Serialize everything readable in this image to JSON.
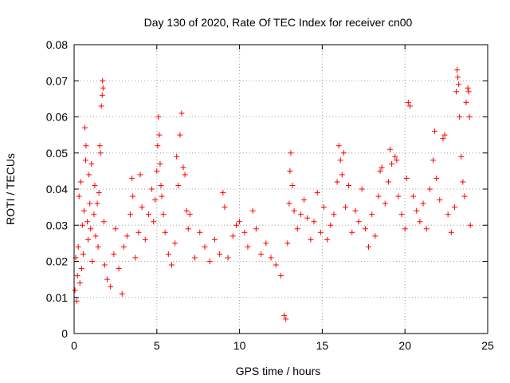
{
  "chart_data": {
    "type": "scatter",
    "title": "Day 130 of 2020, Rate Of TEC Index for receiver cn00",
    "xlabel": "GPS time / hours",
    "ylabel": "ROTI / TECUs",
    "xlim": [
      0,
      25
    ],
    "ylim": [
      0,
      0.08
    ],
    "xticks": [
      0,
      5,
      10,
      15,
      20,
      25
    ],
    "xtick_labels": [
      "0",
      "5",
      "10",
      "15",
      "20",
      "25"
    ],
    "yticks": [
      0,
      0.01,
      0.02,
      0.03,
      0.04,
      0.05,
      0.06,
      0.07,
      0.08
    ],
    "ytick_labels": [
      "0",
      "0.01",
      "0.02",
      "0.03",
      "0.04",
      "0.05",
      "0.06",
      "0.07",
      "0.08"
    ],
    "grid": true,
    "marker": "+",
    "color": "#ff0000",
    "series": [
      {
        "name": "ROTI",
        "points": [
          [
            0.05,
            0.012
          ],
          [
            0.1,
            0.021
          ],
          [
            0.15,
            0.009
          ],
          [
            0.2,
            0.016
          ],
          [
            0.25,
            0.024
          ],
          [
            0.3,
            0.038
          ],
          [
            0.35,
            0.014
          ],
          [
            0.4,
            0.042
          ],
          [
            0.45,
            0.018
          ],
          [
            0.5,
            0.03
          ],
          [
            0.55,
            0.022
          ],
          [
            0.6,
            0.034
          ],
          [
            0.65,
            0.057
          ],
          [
            0.7,
            0.048
          ],
          [
            0.72,
            0.052
          ],
          [
            0.8,
            0.031
          ],
          [
            0.85,
            0.026
          ],
          [
            0.9,
            0.044
          ],
          [
            0.95,
            0.036
          ],
          [
            1.0,
            0.029
          ],
          [
            1.05,
            0.047
          ],
          [
            1.1,
            0.02
          ],
          [
            1.2,
            0.033
          ],
          [
            1.25,
            0.041
          ],
          [
            1.3,
            0.027
          ],
          [
            1.4,
            0.036
          ],
          [
            1.45,
            0.024
          ],
          [
            1.5,
            0.039
          ],
          [
            1.55,
            0.052
          ],
          [
            1.6,
            0.05
          ],
          [
            1.65,
            0.063
          ],
          [
            1.7,
            0.066
          ],
          [
            1.72,
            0.07
          ],
          [
            1.75,
            0.068
          ],
          [
            1.8,
            0.031
          ],
          [
            1.85,
            0.019
          ],
          [
            2.0,
            0.015
          ],
          [
            2.2,
            0.013
          ],
          [
            2.4,
            0.022
          ],
          [
            2.5,
            0.029
          ],
          [
            2.7,
            0.018
          ],
          [
            2.9,
            0.011
          ],
          [
            3.0,
            0.024
          ],
          [
            3.2,
            0.027
          ],
          [
            3.4,
            0.033
          ],
          [
            3.5,
            0.043
          ],
          [
            3.55,
            0.038
          ],
          [
            3.7,
            0.021
          ],
          [
            3.9,
            0.028
          ],
          [
            4.0,
            0.044
          ],
          [
            4.1,
            0.035
          ],
          [
            4.3,
            0.026
          ],
          [
            4.5,
            0.033
          ],
          [
            4.7,
            0.04
          ],
          [
            4.8,
            0.031
          ],
          [
            4.9,
            0.037
          ],
          [
            5.0,
            0.045
          ],
          [
            5.05,
            0.052
          ],
          [
            5.1,
            0.06
          ],
          [
            5.15,
            0.055
          ],
          [
            5.2,
            0.047
          ],
          [
            5.25,
            0.041
          ],
          [
            5.3,
            0.038
          ],
          [
            5.4,
            0.033
          ],
          [
            5.5,
            0.028
          ],
          [
            5.7,
            0.022
          ],
          [
            5.9,
            0.019
          ],
          [
            6.1,
            0.025
          ],
          [
            6.2,
            0.049
          ],
          [
            6.3,
            0.041
          ],
          [
            6.4,
            0.055
          ],
          [
            6.5,
            0.061
          ],
          [
            6.6,
            0.046
          ],
          [
            6.7,
            0.044
          ],
          [
            6.8,
            0.034
          ],
          [
            6.9,
            0.029
          ],
          [
            7.0,
            0.033
          ],
          [
            7.3,
            0.021
          ],
          [
            7.6,
            0.028
          ],
          [
            7.9,
            0.024
          ],
          [
            8.2,
            0.02
          ],
          [
            8.5,
            0.026
          ],
          [
            8.8,
            0.022
          ],
          [
            9.0,
            0.039
          ],
          [
            9.1,
            0.035
          ],
          [
            9.3,
            0.021
          ],
          [
            9.6,
            0.027
          ],
          [
            9.8,
            0.03
          ],
          [
            10.0,
            0.031
          ],
          [
            10.3,
            0.028
          ],
          [
            10.5,
            0.024
          ],
          [
            10.8,
            0.034
          ],
          [
            11.0,
            0.029
          ],
          [
            11.3,
            0.022
          ],
          [
            11.6,
            0.025
          ],
          [
            11.9,
            0.021
          ],
          [
            12.2,
            0.019
          ],
          [
            12.5,
            0.016
          ],
          [
            12.7,
            0.005
          ],
          [
            12.8,
            0.004
          ],
          [
            12.9,
            0.025
          ],
          [
            13.0,
            0.036
          ],
          [
            13.05,
            0.045
          ],
          [
            13.1,
            0.05
          ],
          [
            13.2,
            0.041
          ],
          [
            13.3,
            0.034
          ],
          [
            13.5,
            0.029
          ],
          [
            13.7,
            0.033
          ],
          [
            13.9,
            0.037
          ],
          [
            14.1,
            0.032
          ],
          [
            14.3,
            0.026
          ],
          [
            14.5,
            0.031
          ],
          [
            14.7,
            0.039
          ],
          [
            14.9,
            0.028
          ],
          [
            15.1,
            0.035
          ],
          [
            15.3,
            0.026
          ],
          [
            15.5,
            0.03
          ],
          [
            15.7,
            0.033
          ],
          [
            15.9,
            0.042
          ],
          [
            16.0,
            0.052
          ],
          [
            16.1,
            0.048
          ],
          [
            16.2,
            0.044
          ],
          [
            16.3,
            0.05
          ],
          [
            16.4,
            0.035
          ],
          [
            16.6,
            0.041
          ],
          [
            16.8,
            0.028
          ],
          [
            17.0,
            0.034
          ],
          [
            17.2,
            0.031
          ],
          [
            17.4,
            0.04
          ],
          [
            17.6,
            0.029
          ],
          [
            17.8,
            0.024
          ],
          [
            18.0,
            0.033
          ],
          [
            18.2,
            0.027
          ],
          [
            18.4,
            0.038
          ],
          [
            18.5,
            0.045
          ],
          [
            18.6,
            0.046
          ],
          [
            18.8,
            0.036
          ],
          [
            19.0,
            0.042
          ],
          [
            19.1,
            0.051
          ],
          [
            19.2,
            0.047
          ],
          [
            19.4,
            0.049
          ],
          [
            19.5,
            0.048
          ],
          [
            19.6,
            0.038
          ],
          [
            19.8,
            0.033
          ],
          [
            20.0,
            0.029
          ],
          [
            20.1,
            0.043
          ],
          [
            20.2,
            0.064
          ],
          [
            20.3,
            0.063
          ],
          [
            20.5,
            0.038
          ],
          [
            20.7,
            0.034
          ],
          [
            20.9,
            0.031
          ],
          [
            21.1,
            0.036
          ],
          [
            21.3,
            0.029
          ],
          [
            21.5,
            0.04
          ],
          [
            21.7,
            0.048
          ],
          [
            21.8,
            0.056
          ],
          [
            21.9,
            0.043
          ],
          [
            22.1,
            0.037
          ],
          [
            22.3,
            0.054
          ],
          [
            22.4,
            0.055
          ],
          [
            22.6,
            0.033
          ],
          [
            22.8,
            0.028
          ],
          [
            23.0,
            0.035
          ],
          [
            23.1,
            0.067
          ],
          [
            23.15,
            0.073
          ],
          [
            23.2,
            0.071
          ],
          [
            23.25,
            0.069
          ],
          [
            23.3,
            0.06
          ],
          [
            23.4,
            0.049
          ],
          [
            23.5,
            0.042
          ],
          [
            23.6,
            0.038
          ],
          [
            23.7,
            0.064
          ],
          [
            23.8,
            0.068
          ],
          [
            23.85,
            0.067
          ],
          [
            23.9,
            0.06
          ],
          [
            23.95,
            0.03
          ]
        ]
      }
    ]
  }
}
